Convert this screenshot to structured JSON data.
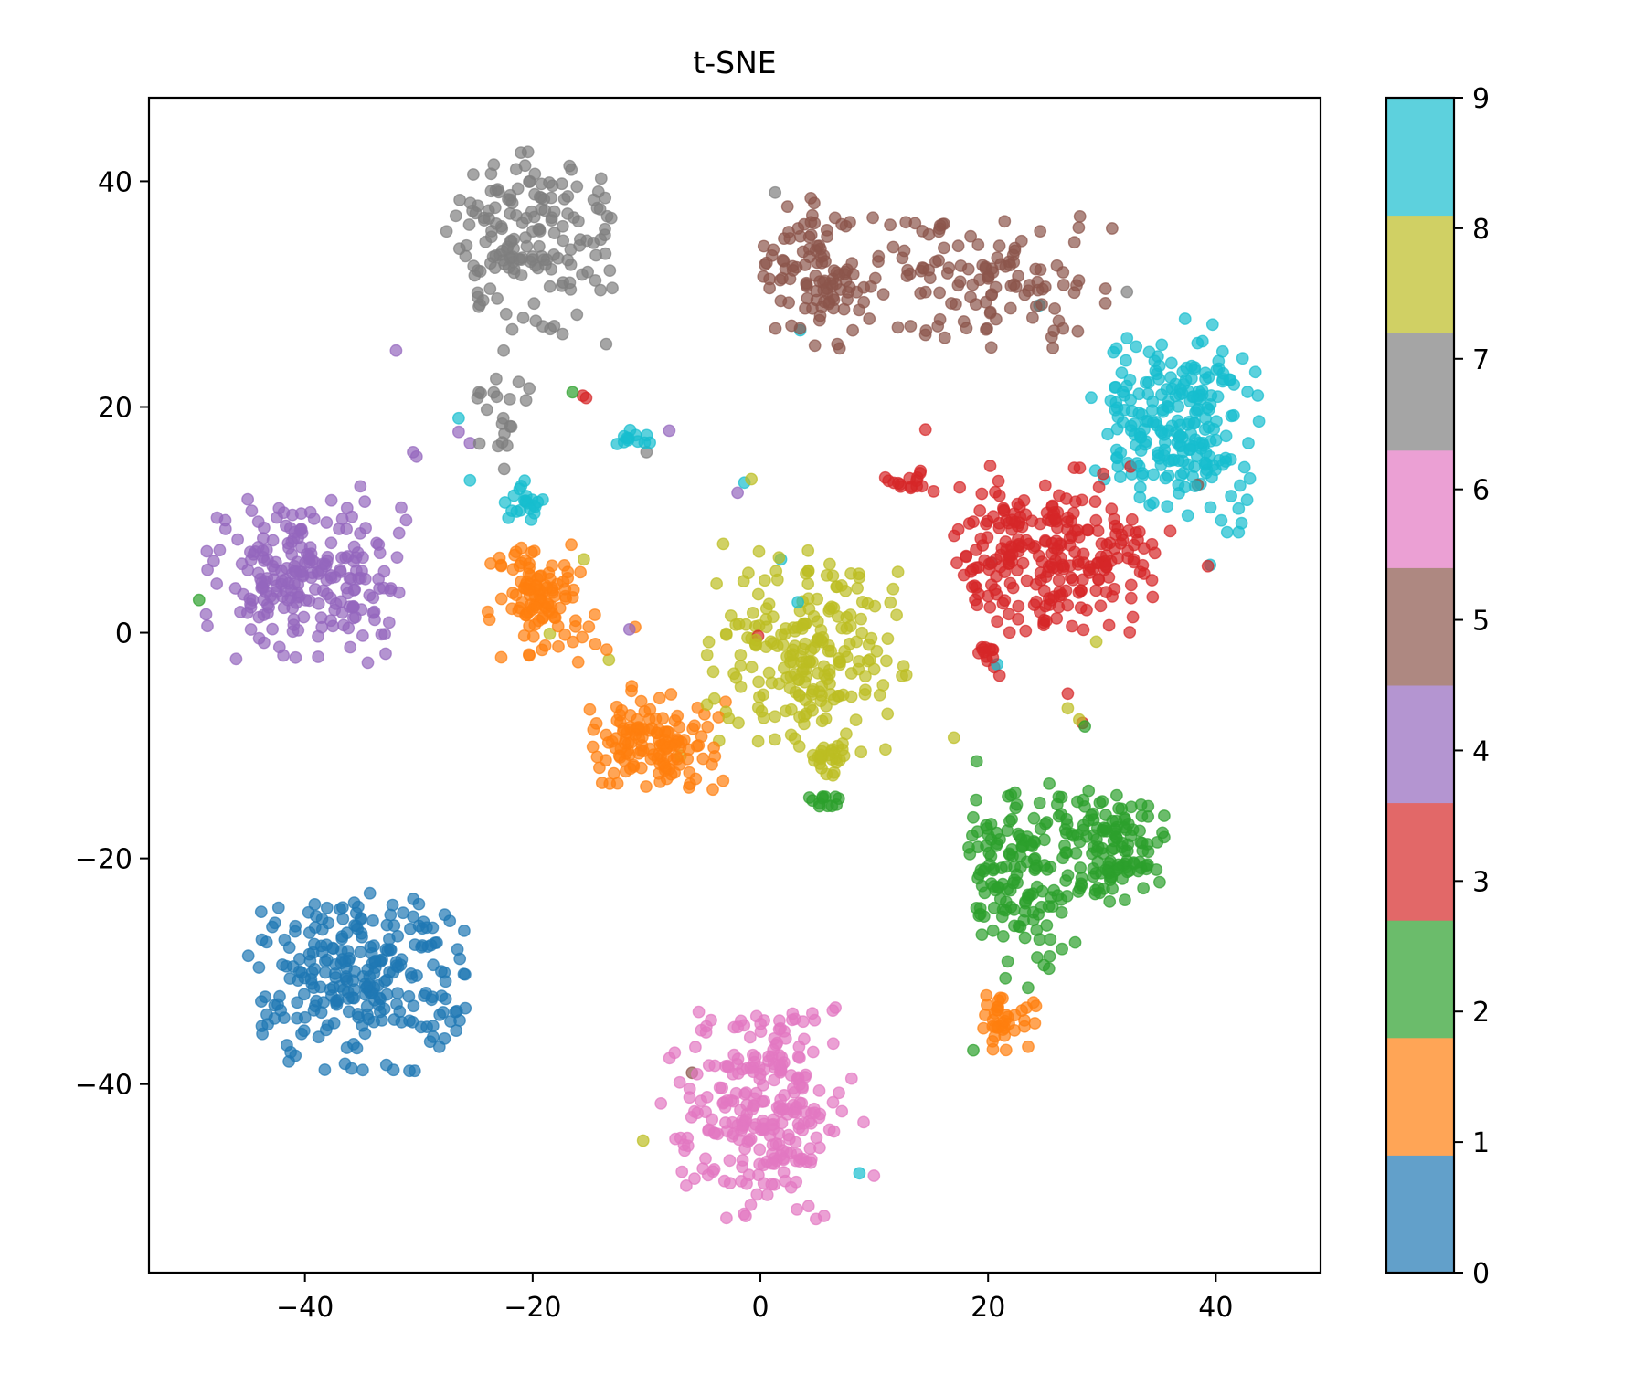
{
  "chart_data": {
    "type": "scatter",
    "title": "t-SNE",
    "xlabel": "",
    "ylabel": "",
    "xlim": [
      -53.7,
      49.2
    ],
    "ylim": [
      -56.7,
      47.4
    ],
    "x_ticks": [
      -40,
      -20,
      0,
      20,
      40
    ],
    "x_tick_labels": [
      "−40",
      "−20",
      "0",
      "20",
      "40"
    ],
    "y_ticks": [
      40,
      20,
      0,
      -20,
      -40
    ],
    "y_tick_labels": [
      "40",
      "20",
      "0",
      "−20",
      "−40"
    ],
    "grid": false,
    "marker_alpha": 0.7,
    "colormap": "tab10",
    "colorbar": {
      "ticks": [
        0,
        1,
        2,
        3,
        4,
        5,
        6,
        7,
        8,
        9
      ],
      "tick_labels": [
        "0",
        "1",
        "2",
        "3",
        "4",
        "5",
        "6",
        "7",
        "8",
        "9"
      ],
      "position": "right"
    },
    "classes": [
      {
        "label": 0,
        "color": "#1f77b4",
        "bar_color": "#62a0ca"
      },
      {
        "label": 1,
        "color": "#ff7f0e",
        "bar_color": "#ffa556"
      },
      {
        "label": 2,
        "color": "#2ca02c",
        "bar_color": "#6bbc6b"
      },
      {
        "label": 3,
        "color": "#d62728",
        "bar_color": "#e26868"
      },
      {
        "label": 4,
        "color": "#9467bd",
        "bar_color": "#b495d1"
      },
      {
        "label": 5,
        "color": "#8c564b",
        "bar_color": "#ae8881"
      },
      {
        "label": 6,
        "color": "#e377c2",
        "bar_color": "#eba0d4"
      },
      {
        "label": 7,
        "color": "#7f7f7f",
        "bar_color": "#a5a5a5"
      },
      {
        "label": 8,
        "color": "#bcbd22",
        "bar_color": "#d0d064"
      },
      {
        "label": 9,
        "color": "#17becf",
        "bar_color": "#5dd1dd"
      }
    ],
    "clusters": [
      {
        "label": 0,
        "cx": -35,
        "cy": -31,
        "sx": 5.2,
        "sy": 4.2,
        "n": 260,
        "xmin": -45,
        "xmax": -25,
        "ymin": -39,
        "ymax": -23
      },
      {
        "label": 7,
        "cx": -20,
        "cy": 35,
        "sx": 3.8,
        "sy": 4.0,
        "n": 170,
        "xmin": -28,
        "xmax": -13,
        "ymin": 24,
        "ymax": 43
      },
      {
        "label": 7,
        "cx": -23,
        "cy": 20,
        "sx": 1.8,
        "sy": 2.0,
        "n": 20,
        "xmin": -27,
        "xmax": -20,
        "ymin": 15,
        "ymax": 23
      },
      {
        "label": 5,
        "cx": 5,
        "cy": 32,
        "sx": 3.0,
        "sy": 3.4,
        "n": 110,
        "xmin": 0,
        "xmax": 11,
        "ymin": 25,
        "ymax": 39
      },
      {
        "label": 5,
        "cx": 19,
        "cy": 31,
        "sx": 5.5,
        "sy": 3.2,
        "n": 120,
        "xmin": 10,
        "xmax": 31,
        "ymin": 25,
        "ymax": 37
      },
      {
        "label": 9,
        "cx": 37,
        "cy": 19,
        "sx": 3.4,
        "sy": 4.0,
        "n": 230,
        "xmin": 29,
        "xmax": 44,
        "ymin": 9,
        "ymax": 28
      },
      {
        "label": 9,
        "cx": -20.5,
        "cy": 11.5,
        "sx": 0.9,
        "sy": 1.1,
        "n": 22,
        "xmin": -22.5,
        "xmax": -18.5,
        "ymin": 9.5,
        "ymax": 14
      },
      {
        "label": 9,
        "cx": -11,
        "cy": 17.2,
        "sx": 1.0,
        "sy": 0.4,
        "n": 12,
        "xmin": -13,
        "xmax": -9,
        "ymin": 16.5,
        "ymax": 18.2
      },
      {
        "label": 3,
        "cx": 25,
        "cy": 7,
        "sx": 5.0,
        "sy": 3.6,
        "n": 260,
        "xmin": 17,
        "xmax": 35,
        "ymin": 0,
        "ymax": 15
      },
      {
        "label": 3,
        "cx": 13,
        "cy": 13.5,
        "sx": 1.8,
        "sy": 0.6,
        "n": 16,
        "xmin": 10,
        "xmax": 16,
        "ymin": 12.5,
        "ymax": 15
      },
      {
        "label": 3,
        "cx": 19.5,
        "cy": -2,
        "sx": 0.8,
        "sy": 0.5,
        "n": 12,
        "xmin": 18,
        "xmax": 21,
        "ymin": -3.5,
        "ymax": -1
      },
      {
        "label": 4,
        "cx": -40,
        "cy": 5,
        "sx": 4.5,
        "sy": 4.0,
        "n": 230,
        "xmin": -49,
        "xmax": -31,
        "ymin": -3.5,
        "ymax": 13
      },
      {
        "label": 1,
        "cx": -19.5,
        "cy": 3.2,
        "sx": 2.2,
        "sy": 2.6,
        "n": 110,
        "xmin": -24,
        "xmax": -14,
        "ymin": -3,
        "ymax": 8
      },
      {
        "label": 1,
        "cx": -9.5,
        "cy": -9.8,
        "sx": 2.6,
        "sy": 2.0,
        "n": 140,
        "xmin": -15,
        "xmax": -3,
        "ymin": -14,
        "ymax": -4
      },
      {
        "label": 1,
        "cx": 21.5,
        "cy": -34.5,
        "sx": 1.3,
        "sy": 1.2,
        "n": 40,
        "xmin": 19.5,
        "xmax": 24.5,
        "ymin": -37,
        "ymax": -32
      }
    ],
    "clusters_2": [
      {
        "label": 8,
        "cx": 4,
        "cy": -2,
        "sx": 4.2,
        "sy": 4.4,
        "n": 230,
        "xmin": -5,
        "xmax": 15,
        "ymin": -13,
        "ymax": 8
      },
      {
        "label": 8,
        "cx": 6,
        "cy": -11.5,
        "sx": 1.0,
        "sy": 1.0,
        "n": 20,
        "xmin": 4,
        "xmax": 8,
        "ymin": -13.5,
        "ymax": -10
      },
      {
        "label": 2,
        "cx": 31,
        "cy": -19,
        "sx": 2.5,
        "sy": 2.5,
        "n": 130,
        "xmin": 26,
        "xmax": 35.5,
        "ymin": -24,
        "ymax": -14
      },
      {
        "label": 2,
        "cx": 23,
        "cy": -21,
        "sx": 3.0,
        "sy": 4.2,
        "n": 150,
        "xmin": 18,
        "xmax": 28,
        "ymin": -33,
        "ymax": -12
      },
      {
        "label": 2,
        "cx": 5.5,
        "cy": -15,
        "sx": 0.9,
        "sy": 0.3,
        "n": 12,
        "xmin": 4,
        "xmax": 7.5,
        "ymin": -15.7,
        "ymax": -14.3
      },
      {
        "label": 6,
        "cx": 0,
        "cy": -42,
        "sx": 3.6,
        "sy": 4.6,
        "n": 270,
        "xmin": -9,
        "xmax": 10,
        "ymin": -52,
        "ymax": -33
      }
    ],
    "outliers": [
      {
        "label": 4,
        "x": -32,
        "y": 25
      },
      {
        "label": 4,
        "x": -30.5,
        "y": 16
      },
      {
        "label": 4,
        "x": -30.2,
        "y": 15.6
      },
      {
        "label": 9,
        "x": -26.5,
        "y": 19
      },
      {
        "label": 4,
        "x": -26.5,
        "y": 17.8
      },
      {
        "label": 4,
        "x": -25.5,
        "y": 16.8
      },
      {
        "label": 9,
        "x": -25.5,
        "y": 13.5
      },
      {
        "label": 7,
        "x": -22.5,
        "y": 14.5
      },
      {
        "label": 2,
        "x": -16.5,
        "y": 21.3
      },
      {
        "label": 3,
        "x": -15.6,
        "y": 21
      },
      {
        "label": 3,
        "x": -15.3,
        "y": 20.8
      },
      {
        "label": 4,
        "x": -8,
        "y": 17.9
      },
      {
        "label": 7,
        "x": -10,
        "y": 16
      },
      {
        "label": 4,
        "x": -2,
        "y": 12.4
      },
      {
        "label": 9,
        "x": -1.4,
        "y": 13.3
      },
      {
        "label": 8,
        "x": -0.8,
        "y": 13.6
      },
      {
        "label": 8,
        "x": -15.5,
        "y": 6.5
      },
      {
        "label": 8,
        "x": -18.5,
        "y": -0.1
      },
      {
        "label": 4,
        "x": -11.5,
        "y": 0.3
      },
      {
        "label": 1,
        "x": -11,
        "y": 0.5
      },
      {
        "label": 1,
        "x": -14.5,
        "y": -1
      },
      {
        "label": 1,
        "x": -13.5,
        "y": -1.5
      },
      {
        "label": 1,
        "x": -16,
        "y": -2.6
      },
      {
        "label": 8,
        "x": -13.3,
        "y": -2.4
      },
      {
        "label": 8,
        "x": -7,
        "y": -10.9
      },
      {
        "label": 3,
        "x": -0.2,
        "y": -0.3
      },
      {
        "label": 9,
        "x": 1.8,
        "y": 6.5
      },
      {
        "label": 9,
        "x": 3.3,
        "y": 2.7
      },
      {
        "label": 9,
        "x": 3.5,
        "y": 26.8
      },
      {
        "label": 9,
        "x": 24.5,
        "y": 29
      },
      {
        "label": 7,
        "x": 1.3,
        "y": 39
      },
      {
        "label": 3,
        "x": 14.5,
        "y": 18
      },
      {
        "label": 9,
        "x": 20.3,
        "y": 6.2
      },
      {
        "label": 9,
        "x": 20.8,
        "y": -2.8
      },
      {
        "label": 3,
        "x": 21,
        "y": -3.8
      },
      {
        "label": 8,
        "x": 29.5,
        "y": -0.8
      },
      {
        "label": 7,
        "x": 32.2,
        "y": 30.2
      },
      {
        "label": 9,
        "x": 34.5,
        "y": 11.5
      },
      {
        "label": 5,
        "x": 38.4,
        "y": 13.1
      },
      {
        "label": 3,
        "x": 36,
        "y": 9
      },
      {
        "label": 9,
        "x": 39.5,
        "y": 6
      },
      {
        "label": 3,
        "x": 39.3,
        "y": 5.9
      },
      {
        "label": 9,
        "x": 41,
        "y": 8.9
      },
      {
        "label": 9,
        "x": 42,
        "y": 8.9
      },
      {
        "label": 9,
        "x": 42,
        "y": 11
      },
      {
        "label": 3,
        "x": 27,
        "y": -5.4
      },
      {
        "label": 8,
        "x": 27,
        "y": -6.7
      },
      {
        "label": 8,
        "x": 28,
        "y": -7.7
      },
      {
        "label": 2,
        "x": 28.5,
        "y": -8.3
      },
      {
        "label": 3,
        "x": 28.3,
        "y": -8
      },
      {
        "label": 8,
        "x": 17,
        "y": -9.3
      },
      {
        "label": 2,
        "x": 19,
        "y": -11.4
      },
      {
        "label": 2,
        "x": 18.7,
        "y": -37
      },
      {
        "label": 2,
        "x": -49.3,
        "y": 2.9
      },
      {
        "label": 5,
        "x": -6,
        "y": -39
      },
      {
        "label": 9,
        "x": 8.7,
        "y": -47.9
      },
      {
        "label": 8,
        "x": -10.3,
        "y": -45
      }
    ]
  }
}
